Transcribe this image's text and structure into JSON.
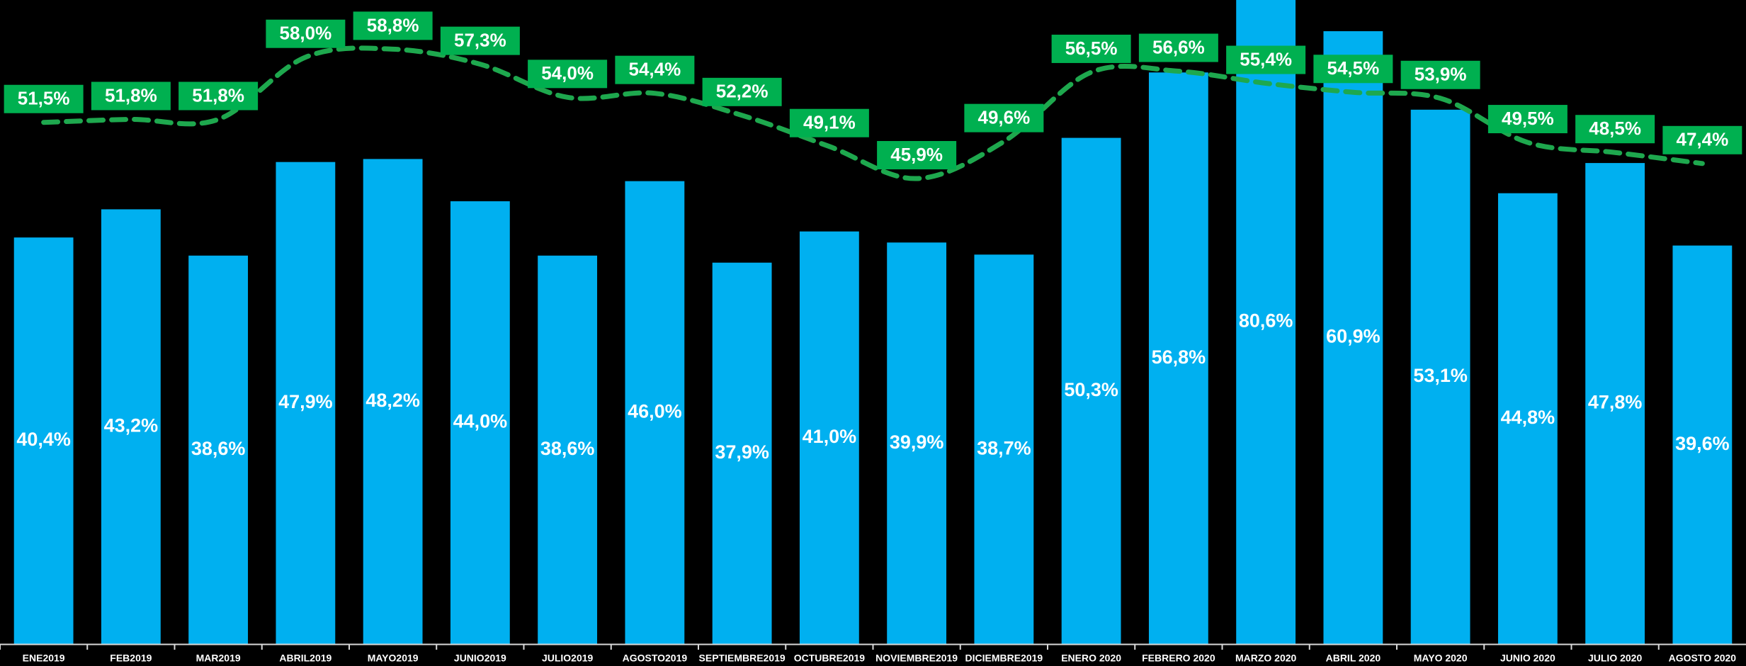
{
  "chart_data": {
    "type": "bar",
    "categories": [
      "ENE2019",
      "FEB2019",
      "MAR2019",
      "ABRIL2019",
      "MAYO2019",
      "JUNIO2019",
      "JULIO2019",
      "AGOSTO2019",
      "SEPTIEMBRE2019",
      "OCTUBRE2019",
      "NOVIEMBRE2019",
      "DICIEMBRE2019",
      "ENERO 2020",
      "FEBRERO 2020",
      "MARZO 2020",
      "ABRIL 2020",
      "MAYO 2020",
      "JUNIO 2020",
      "JULIO 2020",
      "AGOSTO 2020"
    ],
    "series": [
      {
        "type": "bar",
        "color": "#00b0f0",
        "values": [
          40.4,
          43.2,
          38.6,
          47.9,
          48.2,
          44.0,
          38.6,
          46.0,
          37.9,
          41.0,
          39.9,
          38.7,
          50.3,
          56.8,
          80.6,
          60.9,
          53.1,
          44.8,
          47.8,
          39.6
        ],
        "value_labels": [
          "40,4%",
          "43,2%",
          "38,6%",
          "47,9%",
          "48,2%",
          "44,0%",
          "38,6%",
          "46,0%",
          "37,9%",
          "41,0%",
          "39,9%",
          "38,7%",
          "50,3%",
          "56,8%",
          "80,6%",
          "60,9%",
          "53,1%",
          "44,8%",
          "47,8%",
          "39,6%"
        ]
      },
      {
        "type": "line",
        "axis": "y2",
        "color": "#1ea84e",
        "label_color": "#00b050",
        "values": [
          51.5,
          51.8,
          51.8,
          58.0,
          58.8,
          57.3,
          54.0,
          54.4,
          52.2,
          49.1,
          45.9,
          49.6,
          56.5,
          56.6,
          55.4,
          54.5,
          53.9,
          49.5,
          48.5,
          47.4
        ],
        "value_labels": [
          "51,5%",
          "51,8%",
          "51,8%",
          "58,0%",
          "58,8%",
          "57,3%",
          "54,0%",
          "54,4%",
          "52,2%",
          "49,1%",
          "45,9%",
          "49,6%",
          "56,5%",
          "56,6%",
          "55,4%",
          "54,5%",
          "53,9%",
          "49,5%",
          "48,5%",
          "47,4%"
        ]
      }
    ],
    "ylim": [
      0,
      64
    ],
    "y2lim": [
      -0.5,
      63.7
    ],
    "grid": false
  }
}
